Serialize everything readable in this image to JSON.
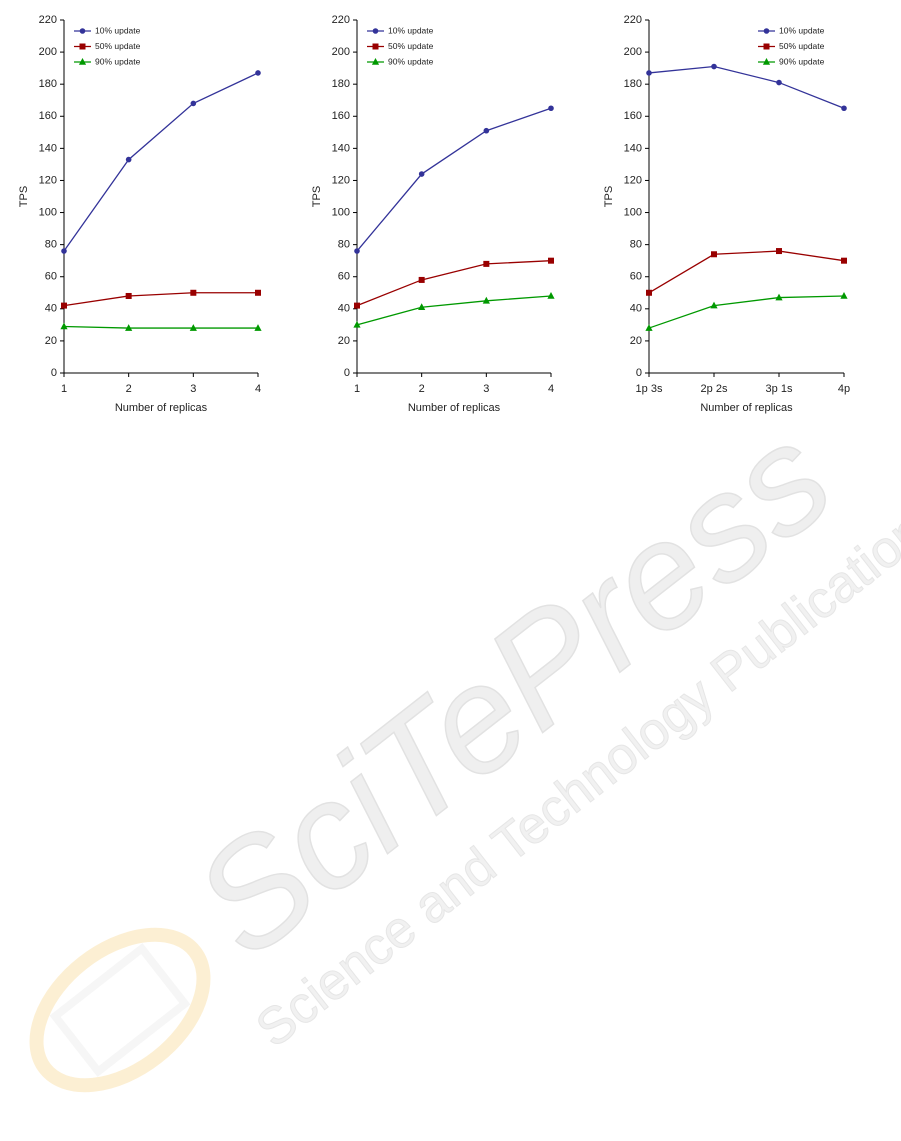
{
  "watermark": {
    "title": "SciTePress",
    "subtitle": "Science and Technology Publications"
  },
  "chart_data": [
    {
      "type": "line",
      "x_label": "Number of replicas",
      "y_label": "TPS",
      "categories": [
        "1",
        "2",
        "3",
        "4"
      ],
      "ylim": [
        0,
        220
      ],
      "yticks": [
        0,
        20,
        40,
        60,
        80,
        100,
        120,
        140,
        160,
        180,
        200,
        220
      ],
      "legend": "upper left",
      "series": [
        {
          "name": "10% update",
          "color": "#333399",
          "marker": "circle",
          "values": [
            76,
            133,
            168,
            187
          ]
        },
        {
          "name": "50% update",
          "color": "#990000",
          "marker": "square",
          "values": [
            42,
            48,
            50,
            50
          ]
        },
        {
          "name": "90% update",
          "color": "#009900",
          "marker": "triangle",
          "values": [
            29,
            28,
            28,
            28
          ]
        }
      ]
    },
    {
      "type": "line",
      "x_label": "Number of replicas",
      "y_label": "TPS",
      "categories": [
        "1",
        "2",
        "3",
        "4"
      ],
      "ylim": [
        0,
        220
      ],
      "yticks": [
        0,
        20,
        40,
        60,
        80,
        100,
        120,
        140,
        160,
        180,
        200,
        220
      ],
      "legend": "upper left",
      "series": [
        {
          "name": "10% update",
          "color": "#333399",
          "marker": "circle",
          "values": [
            76,
            124,
            151,
            165
          ]
        },
        {
          "name": "50% update",
          "color": "#990000",
          "marker": "square",
          "values": [
            42,
            58,
            68,
            70
          ]
        },
        {
          "name": "90% update",
          "color": "#009900",
          "marker": "triangle",
          "values": [
            30,
            41,
            45,
            48
          ]
        }
      ]
    },
    {
      "type": "line",
      "x_label": "Number of replicas",
      "y_label": "TPS",
      "categories": [
        "1p 3s",
        "2p 2s",
        "3p 1s",
        "4p"
      ],
      "ylim": [
        0,
        220
      ],
      "yticks": [
        0,
        20,
        40,
        60,
        80,
        100,
        120,
        140,
        160,
        180,
        200,
        220
      ],
      "legend": "upper right",
      "series": [
        {
          "name": "10% update",
          "color": "#333399",
          "marker": "circle",
          "values": [
            187,
            191,
            181,
            165
          ]
        },
        {
          "name": "50% update",
          "color": "#990000",
          "marker": "square",
          "values": [
            50,
            74,
            76,
            70
          ]
        },
        {
          "name": "90% update",
          "color": "#009900",
          "marker": "triangle",
          "values": [
            28,
            42,
            47,
            48
          ]
        }
      ]
    }
  ]
}
